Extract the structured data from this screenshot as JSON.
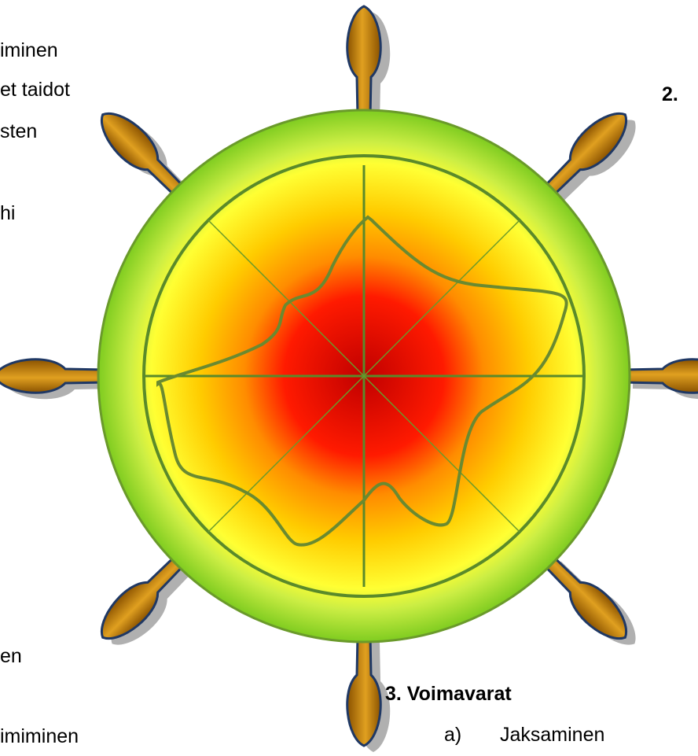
{
  "left_text": [
    "iminen",
    "et taidot",
    "sten",
    "hi",
    "en",
    "imiminen"
  ],
  "right_heading": "2.",
  "section": {
    "title": "3. Voimavarat",
    "item_marker": "a)",
    "item_text": "Jaksaminen"
  }
}
